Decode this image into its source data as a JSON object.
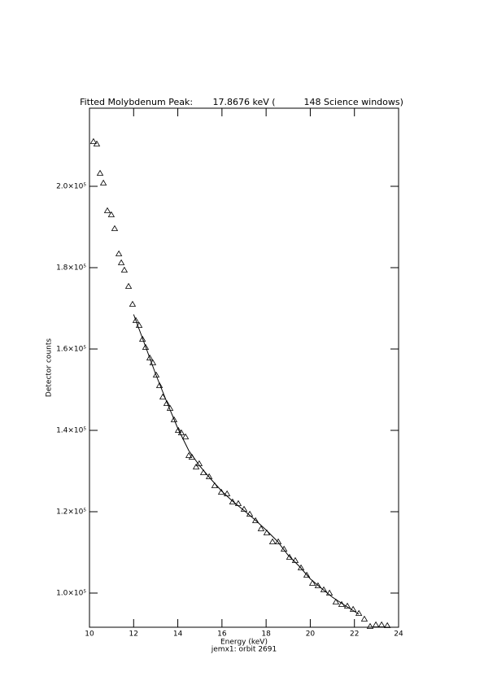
{
  "chart_data": {
    "type": "scatter",
    "title": "Fitted Molybdenum Peak:       17.8676 keV (          148 Science windows)",
    "x_label": "Energy (keV)",
    "subtitle": "jemx1: orbit 2691",
    "y_label": "Detector counts",
    "xlim": [
      10,
      24
    ],
    "xticks": [
      10,
      12,
      14,
      16,
      18,
      20,
      22,
      24
    ],
    "ylim": [
      91600,
      219200
    ],
    "yticks": [
      {
        "value": 100000,
        "label": "1.0×10⁵"
      },
      {
        "value": 120000,
        "label": "1.2×10⁵"
      },
      {
        "value": 140000,
        "label": "1.4×10⁵"
      },
      {
        "value": 160000,
        "label": "1.6×10⁵"
      },
      {
        "value": 180000,
        "label": "1.8×10⁵"
      },
      {
        "value": 200000,
        "label": "2.0×10⁵"
      }
    ],
    "color": "#000000",
    "series": [
      {
        "marker": "triangle",
        "x": [
          10.18,
          10.33,
          10.48,
          10.63,
          10.81,
          10.99,
          11.14,
          11.33,
          11.44,
          11.58,
          11.77,
          11.95,
          12.1,
          12.25,
          12.4,
          12.54,
          12.73,
          12.87,
          13.02,
          13.17,
          13.32,
          13.5,
          13.65,
          13.83,
          14.02,
          14.16,
          14.35,
          14.5,
          14.64,
          14.83,
          14.97,
          15.16,
          15.42,
          15.67,
          15.97,
          16.23,
          16.48,
          16.74,
          17.0,
          17.26,
          17.52,
          17.77,
          18.03,
          18.29,
          18.55,
          18.81,
          19.06,
          19.32,
          19.58,
          19.84,
          20.1,
          20.35,
          20.61,
          20.87,
          21.16,
          21.42,
          21.68,
          21.94,
          22.2,
          22.45,
          22.71,
          22.97,
          23.23,
          23.49
        ],
        "values": [
          211000,
          210400,
          203200,
          200800,
          194000,
          193000,
          189600,
          183400,
          181200,
          179400,
          175400,
          171000,
          167000,
          165800,
          162400,
          160400,
          157800,
          156600,
          153600,
          151000,
          148200,
          146600,
          145400,
          142600,
          140000,
          139400,
          138400,
          133800,
          133400,
          131000,
          131800,
          129600,
          128600,
          126400,
          124800,
          124400,
          122400,
          122000,
          120600,
          119400,
          117800,
          115800,
          114800,
          112600,
          112600,
          110800,
          108800,
          108000,
          106200,
          104400,
          102400,
          101800,
          100800,
          100000,
          97800,
          97200,
          96800,
          96000,
          95000,
          93600,
          91800,
          92200,
          92200,
          92000
        ]
      },
      {
        "marker": "line",
        "x": [
          12.0,
          12.5,
          13.0,
          13.5,
          14.0,
          14.5,
          15.0,
          15.5,
          16.0,
          16.5,
          17.0,
          17.5,
          18.0,
          18.5,
          19.0,
          19.5,
          20.0,
          20.5,
          21.0,
          21.5,
          22.0,
          22.2
        ],
        "values": [
          168500,
          161200,
          153800,
          147000,
          140500,
          135000,
          131200,
          128000,
          125000,
          122500,
          120300,
          118000,
          115500,
          112800,
          109300,
          106600,
          103500,
          101200,
          99000,
          97200,
          95500,
          94800
        ]
      }
    ]
  }
}
